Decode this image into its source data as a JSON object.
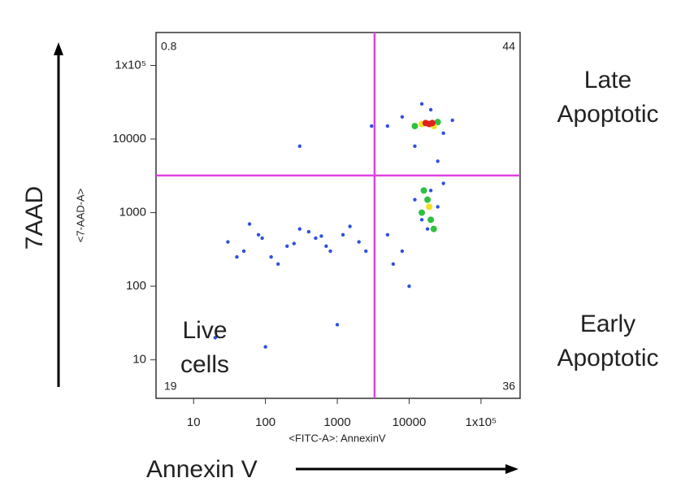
{
  "chart_data": {
    "type": "scatter",
    "x_label": "<FITC-A>: AnnexinV",
    "y_label": "<7-AAD-A>",
    "outer_y_label": "7AAD",
    "outer_x_label": "Annexin V",
    "quadrant_labels": {
      "upper_right": [
        "Late",
        "Apoptotic"
      ],
      "lower_right": [
        "Early",
        "Apoptotic"
      ],
      "lower_left": [
        "Live",
        "cells"
      ]
    },
    "quadrant_values": {
      "upper_left": "0.8",
      "upper_right": "44",
      "lower_left": "19",
      "lower_right": "36"
    },
    "log_x": true,
    "log_y": true,
    "xlim": [
      3,
      350000
    ],
    "ylim": [
      3,
      280000
    ],
    "xticks": [
      10,
      100,
      1000,
      10000,
      {
        "value": 100000,
        "label": "1x10⁵"
      }
    ],
    "yticks": [
      10,
      100,
      1000,
      10000,
      {
        "value": 100000,
        "label": "1x10⁵"
      }
    ],
    "x_gate": 3300,
    "y_gate": 3200,
    "gate_color": "#e040e0",
    "series": [
      {
        "color": "#3050e0",
        "x": [
          30,
          50,
          80,
          120,
          200,
          300,
          500,
          800,
          1200,
          2000,
          60,
          150,
          400,
          700,
          1500,
          2500,
          40,
          90,
          250,
          600,
          5000,
          8000,
          12000,
          15000,
          20000,
          25000,
          6000,
          10000,
          18000,
          30000,
          5000,
          8000,
          12000,
          20000,
          30000,
          40000,
          15000,
          25000,
          20,
          100,
          1000,
          300,
          3000
        ],
        "values": [
          400,
          300,
          500,
          250,
          350,
          600,
          450,
          300,
          500,
          400,
          700,
          200,
          550,
          350,
          650,
          300,
          250,
          450,
          380,
          480,
          500,
          300,
          1500,
          800,
          2000,
          1200,
          200,
          100,
          600,
          2500,
          15000,
          20000,
          8000,
          25000,
          12000,
          18000,
          30000,
          5000,
          20,
          15,
          30,
          8000,
          15000
        ]
      },
      {
        "color": "#30c040",
        "x": [
          15000,
          20000,
          18000,
          22000,
          16000,
          12000,
          25000
        ],
        "values": [
          1000,
          800,
          1500,
          600,
          2000,
          15000,
          17000
        ]
      },
      {
        "color": "#f0e020",
        "x": [
          15000,
          22000,
          19000
        ],
        "values": [
          16000,
          15000,
          1200
        ]
      },
      {
        "color": "#e02020",
        "x": [
          17000,
          19000,
          21000
        ],
        "values": [
          16500,
          16000,
          16500
        ]
      }
    ]
  }
}
